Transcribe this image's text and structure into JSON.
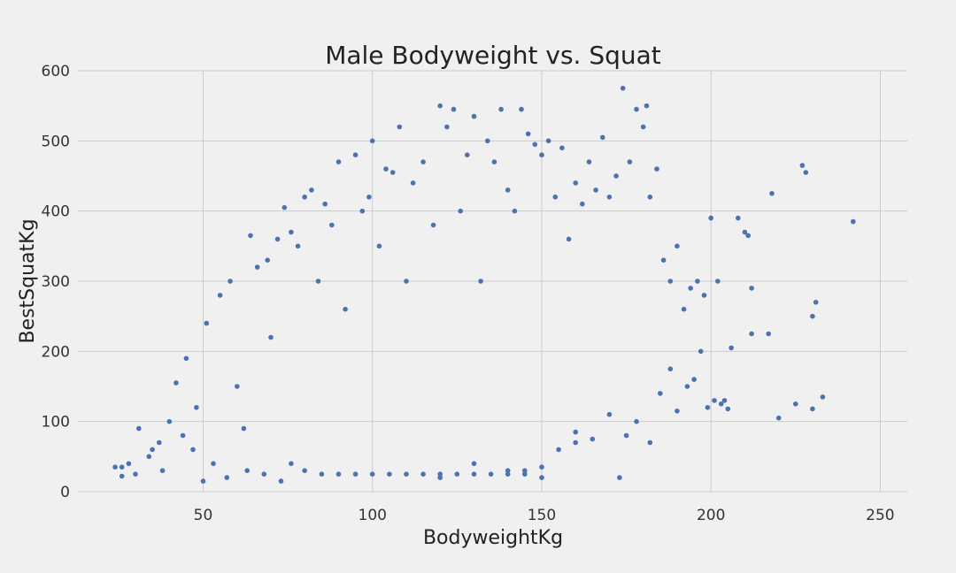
{
  "chart_data": {
    "type": "scatter",
    "title": "Male Bodyweight vs. Squat",
    "xlabel": "BodyweightKg",
    "ylabel": "BestSquatKg",
    "xlim": [
      13,
      258
    ],
    "ylim": [
      0,
      600
    ],
    "xticks": [
      50,
      100,
      150,
      200,
      250
    ],
    "yticks": [
      0,
      100,
      200,
      300,
      400,
      500,
      600
    ],
    "grid": true,
    "series": [
      {
        "color": "#4c72b0",
        "points": [
          [
            24,
            35
          ],
          [
            26,
            22
          ],
          [
            28,
            40
          ],
          [
            31,
            90
          ],
          [
            35,
            60
          ],
          [
            38,
            30
          ],
          [
            42,
            155
          ],
          [
            45,
            190
          ],
          [
            48,
            120
          ],
          [
            51,
            240
          ],
          [
            55,
            280
          ],
          [
            58,
            300
          ],
          [
            60,
            150
          ],
          [
            62,
            90
          ],
          [
            64,
            365
          ],
          [
            66,
            320
          ],
          [
            69,
            330
          ],
          [
            70,
            220
          ],
          [
            72,
            360
          ],
          [
            74,
            405
          ],
          [
            76,
            370
          ],
          [
            78,
            350
          ],
          [
            80,
            420
          ],
          [
            82,
            430
          ],
          [
            84,
            300
          ],
          [
            86,
            410
          ],
          [
            88,
            380
          ],
          [
            90,
            470
          ],
          [
            92,
            260
          ],
          [
            95,
            480
          ],
          [
            97,
            400
          ],
          [
            99,
            420
          ],
          [
            100,
            500
          ],
          [
            102,
            350
          ],
          [
            104,
            460
          ],
          [
            106,
            455
          ],
          [
            108,
            520
          ],
          [
            110,
            300
          ],
          [
            112,
            440
          ],
          [
            115,
            470
          ],
          [
            118,
            380
          ],
          [
            120,
            550
          ],
          [
            122,
            520
          ],
          [
            124,
            545
          ],
          [
            126,
            400
          ],
          [
            128,
            480
          ],
          [
            130,
            535
          ],
          [
            132,
            300
          ],
          [
            134,
            500
          ],
          [
            136,
            470
          ],
          [
            138,
            545
          ],
          [
            140,
            430
          ],
          [
            142,
            400
          ],
          [
            144,
            545
          ],
          [
            146,
            510
          ],
          [
            148,
            495
          ],
          [
            150,
            480
          ],
          [
            152,
            500
          ],
          [
            154,
            420
          ],
          [
            156,
            490
          ],
          [
            158,
            360
          ],
          [
            160,
            440
          ],
          [
            162,
            410
          ],
          [
            164,
            470
          ],
          [
            166,
            430
          ],
          [
            168,
            505
          ],
          [
            170,
            420
          ],
          [
            172,
            450
          ],
          [
            174,
            575
          ],
          [
            176,
            470
          ],
          [
            178,
            545
          ],
          [
            180,
            520
          ],
          [
            181,
            550
          ],
          [
            182,
            420
          ],
          [
            184,
            460
          ],
          [
            186,
            330
          ],
          [
            188,
            300
          ],
          [
            190,
            350
          ],
          [
            192,
            260
          ],
          [
            194,
            290
          ],
          [
            196,
            300
          ],
          [
            198,
            280
          ],
          [
            200,
            390
          ],
          [
            202,
            300
          ],
          [
            204,
            130
          ],
          [
            206,
            205
          ],
          [
            208,
            390
          ],
          [
            210,
            370
          ],
          [
            211,
            365
          ],
          [
            212,
            290
          ],
          [
            212,
            225
          ],
          [
            217,
            225
          ],
          [
            218,
            425
          ],
          [
            220,
            105
          ],
          [
            225,
            125
          ],
          [
            227,
            465
          ],
          [
            228,
            455
          ],
          [
            230,
            250
          ],
          [
            230,
            118
          ],
          [
            231,
            270
          ],
          [
            233,
            135
          ],
          [
            242,
            385
          ],
          [
            26,
            35
          ],
          [
            30,
            25
          ],
          [
            34,
            50
          ],
          [
            37,
            70
          ],
          [
            40,
            100
          ],
          [
            44,
            80
          ],
          [
            47,
            60
          ],
          [
            50,
            15
          ],
          [
            53,
            40
          ],
          [
            57,
            20
          ],
          [
            63,
            30
          ],
          [
            68,
            25
          ],
          [
            73,
            15
          ],
          [
            76,
            40
          ],
          [
            80,
            30
          ],
          [
            85,
            25
          ],
          [
            90,
            25
          ],
          [
            95,
            25
          ],
          [
            100,
            25
          ],
          [
            105,
            25
          ],
          [
            110,
            25
          ],
          [
            115,
            25
          ],
          [
            120,
            25
          ],
          [
            125,
            25
          ],
          [
            130,
            25
          ],
          [
            135,
            25
          ],
          [
            140,
            25
          ],
          [
            145,
            25
          ],
          [
            150,
            35
          ],
          [
            155,
            60
          ],
          [
            160,
            70
          ],
          [
            165,
            75
          ],
          [
            170,
            110
          ],
          [
            173,
            20
          ],
          [
            175,
            80
          ],
          [
            178,
            100
          ],
          [
            182,
            70
          ],
          [
            185,
            140
          ],
          [
            188,
            175
          ],
          [
            190,
            115
          ],
          [
            193,
            150
          ],
          [
            195,
            160
          ],
          [
            197,
            200
          ],
          [
            199,
            120
          ],
          [
            201,
            130
          ],
          [
            203,
            125
          ],
          [
            205,
            118
          ],
          [
            120,
            20
          ],
          [
            130,
            40
          ],
          [
            140,
            30
          ],
          [
            150,
            20
          ],
          [
            160,
            85
          ],
          [
            145,
            30
          ]
        ]
      }
    ]
  }
}
